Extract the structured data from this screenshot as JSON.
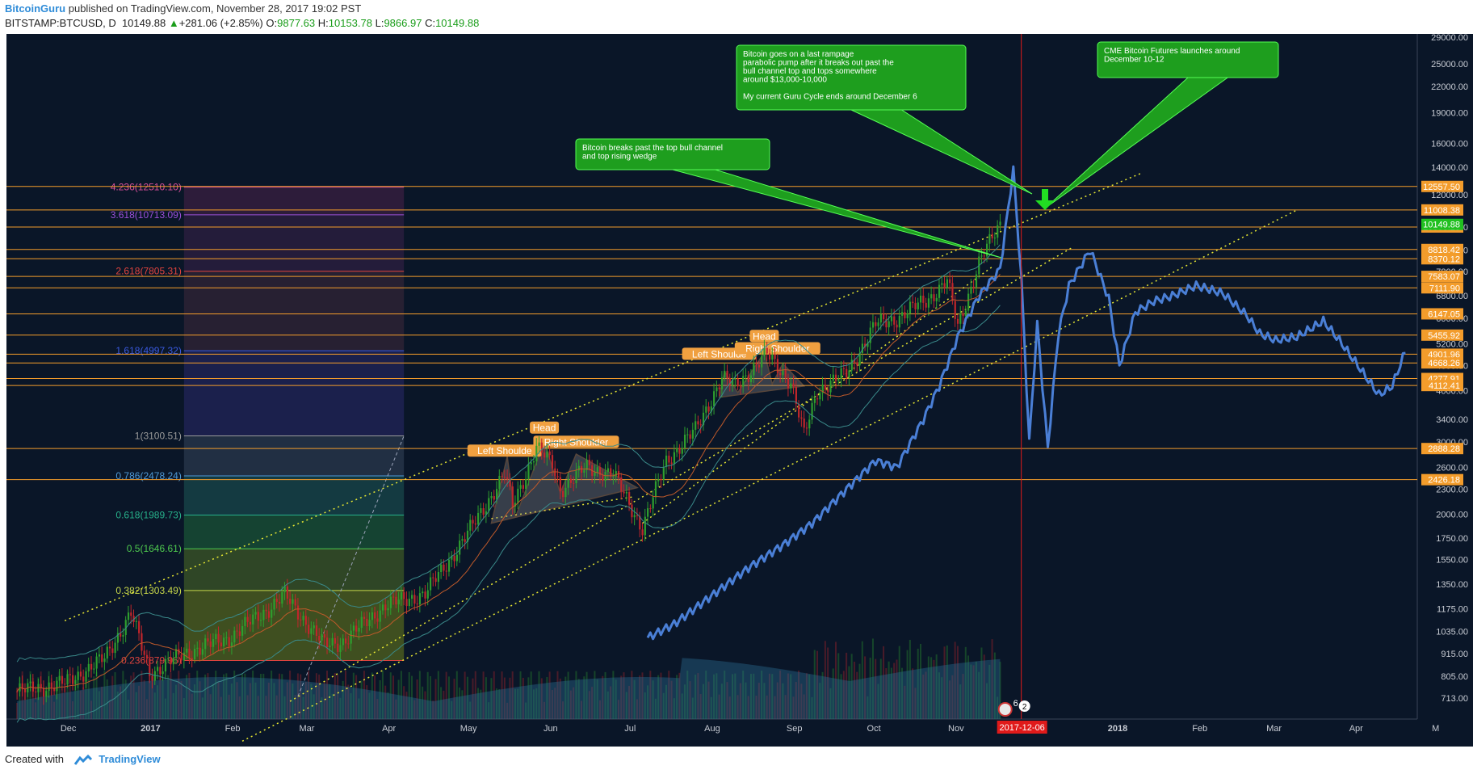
{
  "header": {
    "author": "BitcoinGuru",
    "published_text": "published on TradingView.com, November 28, 2017 19:02 PST"
  },
  "ticker": {
    "symbol": "BITSTAMP:BTCUSD, D",
    "last": "10149.88",
    "arrow": "▲",
    "change": "+281.06 (+2.85%)",
    "open_label": "O:",
    "open": "9877.63",
    "high_label": "H:",
    "high": "10153.78",
    "low_label": "L:",
    "low": "9866.97",
    "close_label": "C:",
    "close": "10149.88"
  },
  "footer": {
    "created_with": "Created with",
    "brand": "TradingView"
  },
  "colors": {
    "background": "#0a1628",
    "candle_up": "#2e9e2e",
    "candle_down": "#c0262b",
    "projection": "#4a7fd6",
    "level_line": "#f39c2b",
    "trendline": "#e8e832",
    "callout": "#1e9e1e",
    "cursor_line": "#e01a1a"
  },
  "chart_data": {
    "type": "line",
    "title": "",
    "scale": "log",
    "ylim": [
      713,
      29000
    ],
    "y_ticks": [
      "29000.00",
      "25000.00",
      "22000.00",
      "19000.00",
      "16000.00",
      "14000.00",
      "12000.00",
      "10000.00",
      "8800.00",
      "7800.00",
      "6800.00",
      "6000.00",
      "5200.00",
      "4600.00",
      "4000.00",
      "3400.00",
      "3000.00",
      "2600.00",
      "2300.00",
      "2000.00",
      "1750.00",
      "1550.00",
      "1350.00",
      "1175.00",
      "1035.00",
      "915.00",
      "805.00",
      "713.00"
    ],
    "x_ticks": [
      {
        "label": "Dec",
        "date": "2016-12-01"
      },
      {
        "label": "2017",
        "date": "2017-01-01"
      },
      {
        "label": "Feb",
        "date": "2017-02-01"
      },
      {
        "label": "Mar",
        "date": "2017-03-01"
      },
      {
        "label": "Apr",
        "date": "2017-04-01"
      },
      {
        "label": "May",
        "date": "2017-05-01"
      },
      {
        "label": "Jun",
        "date": "2017-06-01"
      },
      {
        "label": "Jul",
        "date": "2017-07-01"
      },
      {
        "label": "Aug",
        "date": "2017-08-01"
      },
      {
        "label": "Sep",
        "date": "2017-09-01"
      },
      {
        "label": "Oct",
        "date": "2017-10-01"
      },
      {
        "label": "Nov",
        "date": "2017-11-01"
      },
      {
        "label": "2018",
        "date": "2018-01-01"
      },
      {
        "label": "Feb",
        "date": "2018-02-01"
      },
      {
        "label": "Mar",
        "date": "2018-03-01"
      },
      {
        "label": "Apr",
        "date": "2018-04-01"
      },
      {
        "label": "M",
        "date": "2018-05-01"
      }
    ],
    "cursor_date": "2017-12-06",
    "price_series": {
      "x": [
        "2016-11-22",
        "2016-12-10",
        "2016-12-25",
        "2017-01-04",
        "2017-01-11",
        "2017-01-25",
        "2017-02-10",
        "2017-02-25",
        "2017-03-03",
        "2017-03-18",
        "2017-03-25",
        "2017-04-10",
        "2017-04-25",
        "2017-05-10",
        "2017-05-25",
        "2017-05-28",
        "2017-06-06",
        "2017-06-12",
        "2017-06-15",
        "2017-06-25",
        "2017-07-05",
        "2017-07-16",
        "2017-07-25",
        "2017-08-05",
        "2017-08-15",
        "2017-08-20",
        "2017-09-01",
        "2017-09-10",
        "2017-09-15",
        "2017-09-20",
        "2017-10-01",
        "2017-10-12",
        "2017-10-20",
        "2017-11-01",
        "2017-11-08",
        "2017-11-12",
        "2017-11-20",
        "2017-11-28"
      ],
      "y": [
        740,
        775,
        890,
        1150,
        820,
        920,
        1000,
        1180,
        1270,
        960,
        980,
        1200,
        1280,
        1750,
        2500,
        2100,
        2900,
        2650,
        2300,
        2600,
        2500,
        1850,
        2700,
        3200,
        4300,
        4100,
        4900,
        4200,
        3100,
        4000,
        4400,
        5800,
        6000,
        6700,
        7400,
        5700,
        8200,
        10149.88
      ]
    },
    "projection_series": {
      "x": [
        "2017-07-18",
        "2017-07-28",
        "2017-08-10",
        "2017-08-25",
        "2017-09-08",
        "2017-09-18",
        "2017-10-01",
        "2017-10-12",
        "2017-10-20",
        "2017-10-30",
        "2017-11-05",
        "2017-11-12",
        "2017-11-20",
        "2017-11-28",
        "2017-12-03",
        "2017-12-06",
        "2017-12-09",
        "2017-12-12",
        "2017-12-16",
        "2017-12-20",
        "2017-12-24",
        "2018-01-01",
        "2018-01-08",
        "2018-01-12",
        "2018-01-18",
        "2018-01-25",
        "2018-02-01",
        "2018-02-10",
        "2018-02-20",
        "2018-03-01",
        "2018-03-06",
        "2018-03-12",
        "2018-03-20",
        "2018-03-30",
        "2018-04-05",
        "2018-04-12",
        "2018-04-20",
        "2018-04-25",
        "2018-04-30"
      ],
      "y": [
        1000,
        1080,
        1250,
        1480,
        1700,
        1900,
        2300,
        2700,
        2600,
        3400,
        4100,
        5400,
        6800,
        7900,
        13800,
        7500,
        3000,
        5800,
        2900,
        5500,
        7200,
        8800,
        6700,
        4600,
        6200,
        6600,
        6800,
        7200,
        6900,
        6100,
        5500,
        5300,
        5400,
        5900,
        5300,
        4600,
        3900,
        4100,
        5000
      ]
    },
    "horizontal_levels": [
      "12557.50",
      "11008.38",
      "10003.28",
      "8818.42",
      "8370.12",
      "7583.07",
      "7111.90",
      "6147.05",
      "5455.92",
      "4901.96",
      "4668.26",
      "4277.91",
      "4112.41",
      "2888.28",
      "2426.18"
    ],
    "current_price_label": "10149.88",
    "fibonacci": [
      {
        "label": "0.236(879.96)",
        "value": 879.96,
        "color": "#e0443e"
      },
      {
        "label": "0.382(1303.49)",
        "value": 1303.49,
        "color": "#c8d84a"
      },
      {
        "label": "0.5(1646.61)",
        "value": 1646.61,
        "color": "#4ec94e"
      },
      {
        "label": "0.618(1989.73)",
        "value": 1989.73,
        "color": "#27b08a"
      },
      {
        "label": "0.786(2478.24)",
        "value": 2478.24,
        "color": "#4f9ad8"
      },
      {
        "label": "1(3100.51)",
        "value": 3100.51,
        "color": "#9a9a9a"
      },
      {
        "label": "1.618(4997.32)",
        "value": 4997.32,
        "color": "#3a5ae0"
      },
      {
        "label": "2.618(7805.31)",
        "value": 7805.31,
        "color": "#e0443e"
      },
      {
        "label": "3.618(10713.09)",
        "value": 10713.09,
        "color": "#9b4fd8"
      },
      {
        "label": "4.236(12510.10)",
        "value": 12510.1,
        "color": "#d84f9b"
      }
    ],
    "pattern_labels": [
      {
        "text": "Left Shoulde",
        "date": "2017-05-25",
        "value": 2760
      },
      {
        "text": "Head",
        "date": "2017-06-09",
        "value": 3140
      },
      {
        "text": "Right Shoulder",
        "date": "2017-06-21",
        "value": 2900
      },
      {
        "text": "Left Shoulde",
        "date": "2017-08-14",
        "value": 4750
      },
      {
        "text": "Head",
        "date": "2017-08-31",
        "value": 5250
      },
      {
        "text": "Right Shoulder",
        "date": "2017-09-05",
        "value": 4900
      }
    ],
    "annotations": [
      {
        "text": "Bitcoin breaks past the top bull channel\nand top rising wedge"
      },
      {
        "text": "Bitcoin goes on a last rampage\nparabolic pump after it breaks out past the\nbull channel top and tops somewhere\naround $13,000-10,000\n\nMy current Guru Cycle ends around December 6"
      },
      {
        "text": "CME Bitcoin Futures launches around\nDecember 10-12"
      }
    ],
    "cursor_label": "2017-12-06",
    "event_badges": [
      "6",
      "2"
    ],
    "grid": false,
    "legend": "none"
  }
}
